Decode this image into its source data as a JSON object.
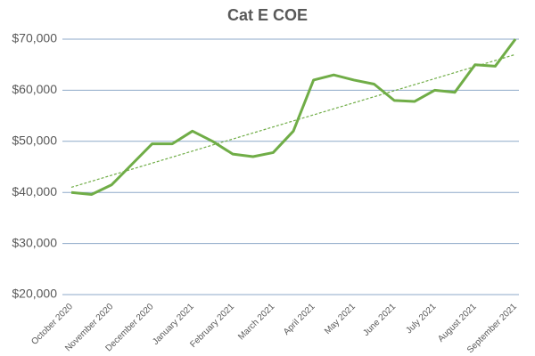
{
  "chart_data": {
    "type": "line",
    "title": "Cat E COE",
    "categories": [
      "October 2020",
      null,
      "November 2020",
      null,
      "December 2020",
      null,
      "January 2021",
      null,
      "February 2021",
      null,
      "March 2021",
      null,
      "April 2021",
      null,
      "May 2021",
      null,
      "June 2021",
      null,
      "July 2021",
      null,
      "August 2021",
      null,
      "September 2021"
    ],
    "series": [
      {
        "name": "Cat E COE",
        "color": "#70ad47",
        "values": [
          40000,
          39600,
          41500,
          45500,
          49500,
          49500,
          52000,
          50000,
          47500,
          47000,
          47800,
          52000,
          62000,
          63000,
          62000,
          61200,
          58000,
          57800,
          60000,
          59600,
          65000,
          64700,
          70000
        ]
      }
    ],
    "trendline": {
      "values": [
        41000,
        67000
      ],
      "color": "#70ad47"
    },
    "ylim": [
      20000,
      70000
    ],
    "yticks": [
      {
        "value": 20000,
        "label": "$20,000"
      },
      {
        "value": 30000,
        "label": "$30,000"
      },
      {
        "value": 40000,
        "label": "$40,000"
      },
      {
        "value": 50000,
        "label": "$50,000"
      },
      {
        "value": 60000,
        "label": "$60,000"
      },
      {
        "value": 70000,
        "label": "$70,000"
      }
    ],
    "grid": true
  }
}
